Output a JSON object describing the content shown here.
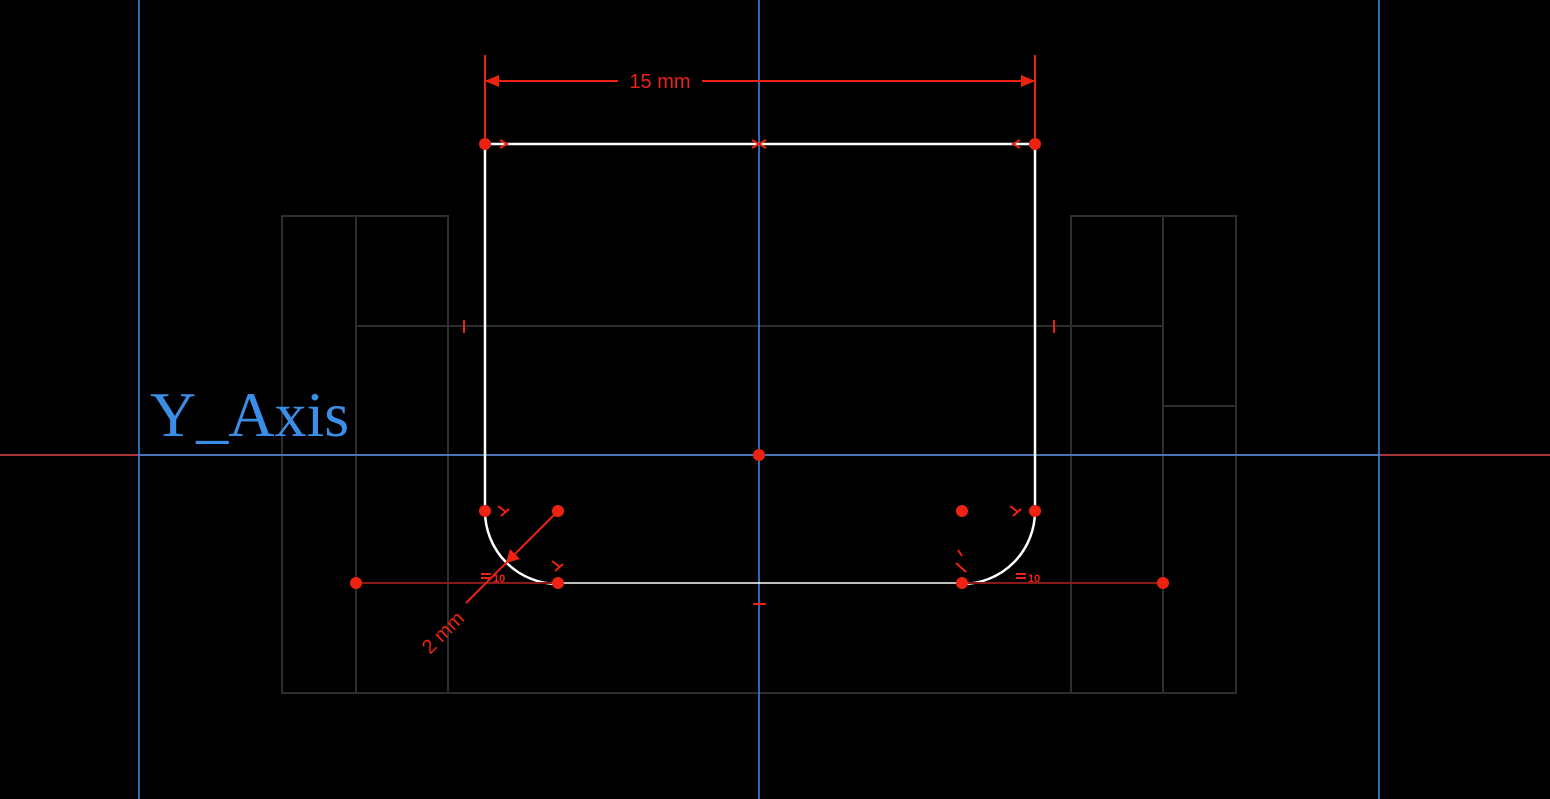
{
  "sketch": {
    "axis_label": "Y_Axis",
    "width_dimension": "15 mm",
    "radius_dimension": "2 mm",
    "equal_constraint_left": "10",
    "equal_constraint_right": "10"
  },
  "colors": {
    "background": "#000000",
    "axis_blue": "#3b8ee8",
    "axis_red": "#e2474a",
    "geometry": "#ffffff",
    "constraint": "#ee2211",
    "reference_geometry": "#2a2a2a"
  }
}
